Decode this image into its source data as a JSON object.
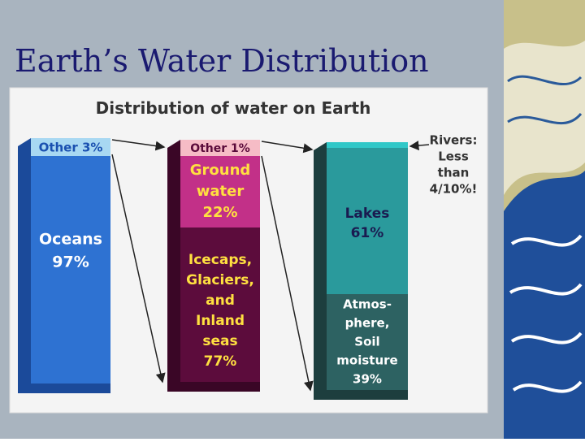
{
  "slide": {
    "title": "Earth’s Water Distribution"
  },
  "figure": {
    "title": "Distribution of water on Earth",
    "columns": [
      {
        "segments": [
          {
            "lines": [
              "Other  3%"
            ]
          },
          {
            "lines": [
              "Oceans",
              "97%"
            ]
          }
        ]
      },
      {
        "segments": [
          {
            "lines": [
              "Other 1%"
            ]
          },
          {
            "lines": [
              "Ground",
              "water",
              "22%"
            ]
          },
          {
            "lines": [
              "Icecaps,",
              "Glaciers,",
              "and",
              "Inland",
              "seas",
              "77%"
            ]
          }
        ]
      },
      {
        "segments": [
          {
            "lines": []
          },
          {
            "lines": [
              "Lakes",
              "61%"
            ]
          },
          {
            "lines": [
              "Atmos-",
              "phere,",
              "Soil",
              "moisture",
              "39%"
            ]
          }
        ]
      }
    ],
    "annotation": {
      "lines": [
        "Rivers:",
        "Less",
        "than",
        "4/10%!"
      ]
    }
  }
}
